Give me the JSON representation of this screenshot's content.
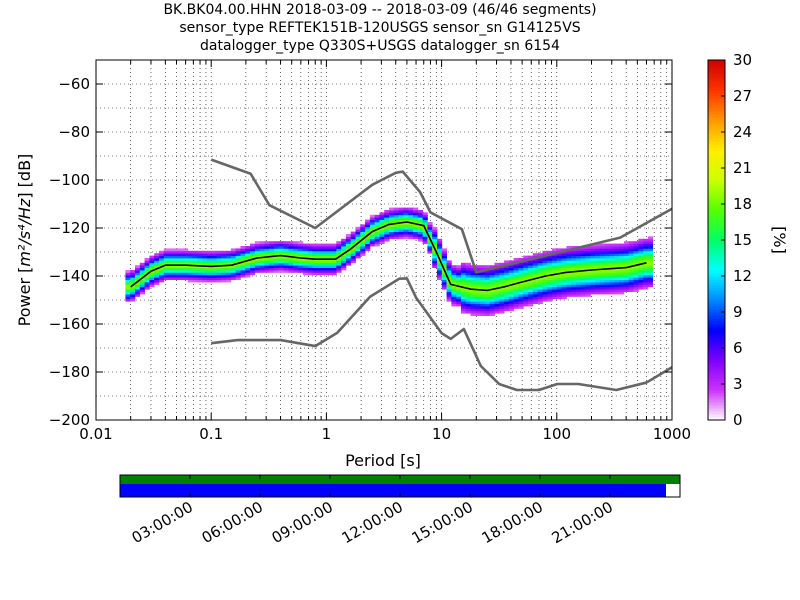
{
  "header": {
    "line1": "BK.BK04.00.HHN   2018-03-09 -- 2018-03-09  (46/46 segments)",
    "line2": "sensor_type REFTEK151B-120USGS sensor_sn G14125VS",
    "line3": "datalogger_type Q330S+USGS datalogger_sn 6154"
  },
  "chart_data": {
    "type": "heatmap",
    "xlabel": "Period [s]",
    "ylabel_prefix": "Power [",
    "ylabel_units": "m²/s⁴/Hz",
    "ylabel_suffix": "] [dB]",
    "xscale": "log",
    "xlim": [
      0.01,
      1000
    ],
    "ylim": [
      -200,
      -50
    ],
    "x_ticks": [
      0.01,
      0.1,
      1,
      10,
      100,
      1000
    ],
    "x_tick_labels": [
      "0.01",
      "0.1",
      "1",
      "10",
      "100",
      "1000"
    ],
    "y_ticks": [
      -200,
      -180,
      -160,
      -140,
      -120,
      -100,
      -80,
      -60
    ],
    "y_tick_labels": [
      "−200",
      "−180",
      "−160",
      "−140",
      "−120",
      "−100",
      "−80",
      "−60"
    ],
    "grid": true,
    "colorbar": {
      "label": "[%]",
      "range": [
        0,
        30
      ],
      "ticks": [
        0,
        3,
        6,
        9,
        12,
        15,
        18,
        21,
        24,
        27,
        30
      ],
      "tick_labels": [
        "0",
        "3",
        "6",
        "9",
        "12",
        "15",
        "18",
        "21",
        "24",
        "27",
        "30"
      ],
      "colors": [
        "#ffffff",
        "#cc33ff",
        "#7f00ff",
        "#0000ff",
        "#0088ff",
        "#00ffff",
        "#00ff66",
        "#55ff00",
        "#ccff00",
        "#ffee00",
        "#ff9900",
        "#ff3300",
        "#d00000"
      ]
    },
    "series": [
      {
        "name": "NHNM",
        "color": "#666666",
        "x": [
          0.1,
          0.22,
          0.32,
          0.8,
          2.5,
          4.0,
          4.6,
          6.5,
          8.0,
          15.0,
          20.0,
          354.8,
          1000.0
        ],
        "y": [
          -91.5,
          -97.4,
          -110.5,
          -120.0,
          -102.0,
          -97.0,
          -96.5,
          -105.0,
          -113.5,
          -120.5,
          -138.5,
          -124.0,
          -112.0
        ]
      },
      {
        "name": "NLNM",
        "color": "#666666",
        "x": [
          0.1,
          0.17,
          0.4,
          0.8,
          1.24,
          2.4,
          4.3,
          5.0,
          6.0,
          10.0,
          12.0,
          15.6,
          21.9,
          31.6,
          45.0,
          70.0,
          101.0,
          154.0,
          328.0,
          600.0,
          1000.0
        ],
        "y": [
          -168.0,
          -166.7,
          -166.7,
          -169.2,
          -163.7,
          -148.6,
          -141.1,
          -141.0,
          -149.0,
          -163.8,
          -166.2,
          -162.1,
          -177.5,
          -185.0,
          -187.5,
          -187.5,
          -185.0,
          -185.0,
          -187.5,
          -184.4,
          -178.0
        ]
      },
      {
        "name": "mode",
        "color": "#000000",
        "x": [
          0.02,
          0.025,
          0.03,
          0.04,
          0.06,
          0.1,
          0.15,
          0.25,
          0.4,
          0.6,
          0.8,
          1.2,
          1.6,
          2.5,
          3.5,
          5.0,
          7.0,
          9.0,
          12.0,
          18.0,
          25.0,
          35.0,
          50.0,
          80.0,
          120.0,
          200.0,
          400.0,
          600.0
        ],
        "y": [
          -144.5,
          -141.0,
          -138.0,
          -135.5,
          -135.5,
          -136.0,
          -135.5,
          -132.5,
          -131.5,
          -132.5,
          -133.0,
          -133.0,
          -129.0,
          -121.5,
          -118.5,
          -117.5,
          -119.0,
          -130.0,
          -143.5,
          -145.5,
          -146.0,
          -144.5,
          -142.5,
          -140.0,
          -138.5,
          -137.5,
          -136.5,
          -134.5
        ]
      }
    ]
  },
  "timeline": {
    "tick_labels": [
      "03:00:00",
      "06:00:00",
      "09:00:00",
      "12:00:00",
      "15:00:00",
      "18:00:00",
      "21:00:00"
    ],
    "data_color": "#008000",
    "psd_color": "#0000ff",
    "psd_coverage": 0.975
  }
}
